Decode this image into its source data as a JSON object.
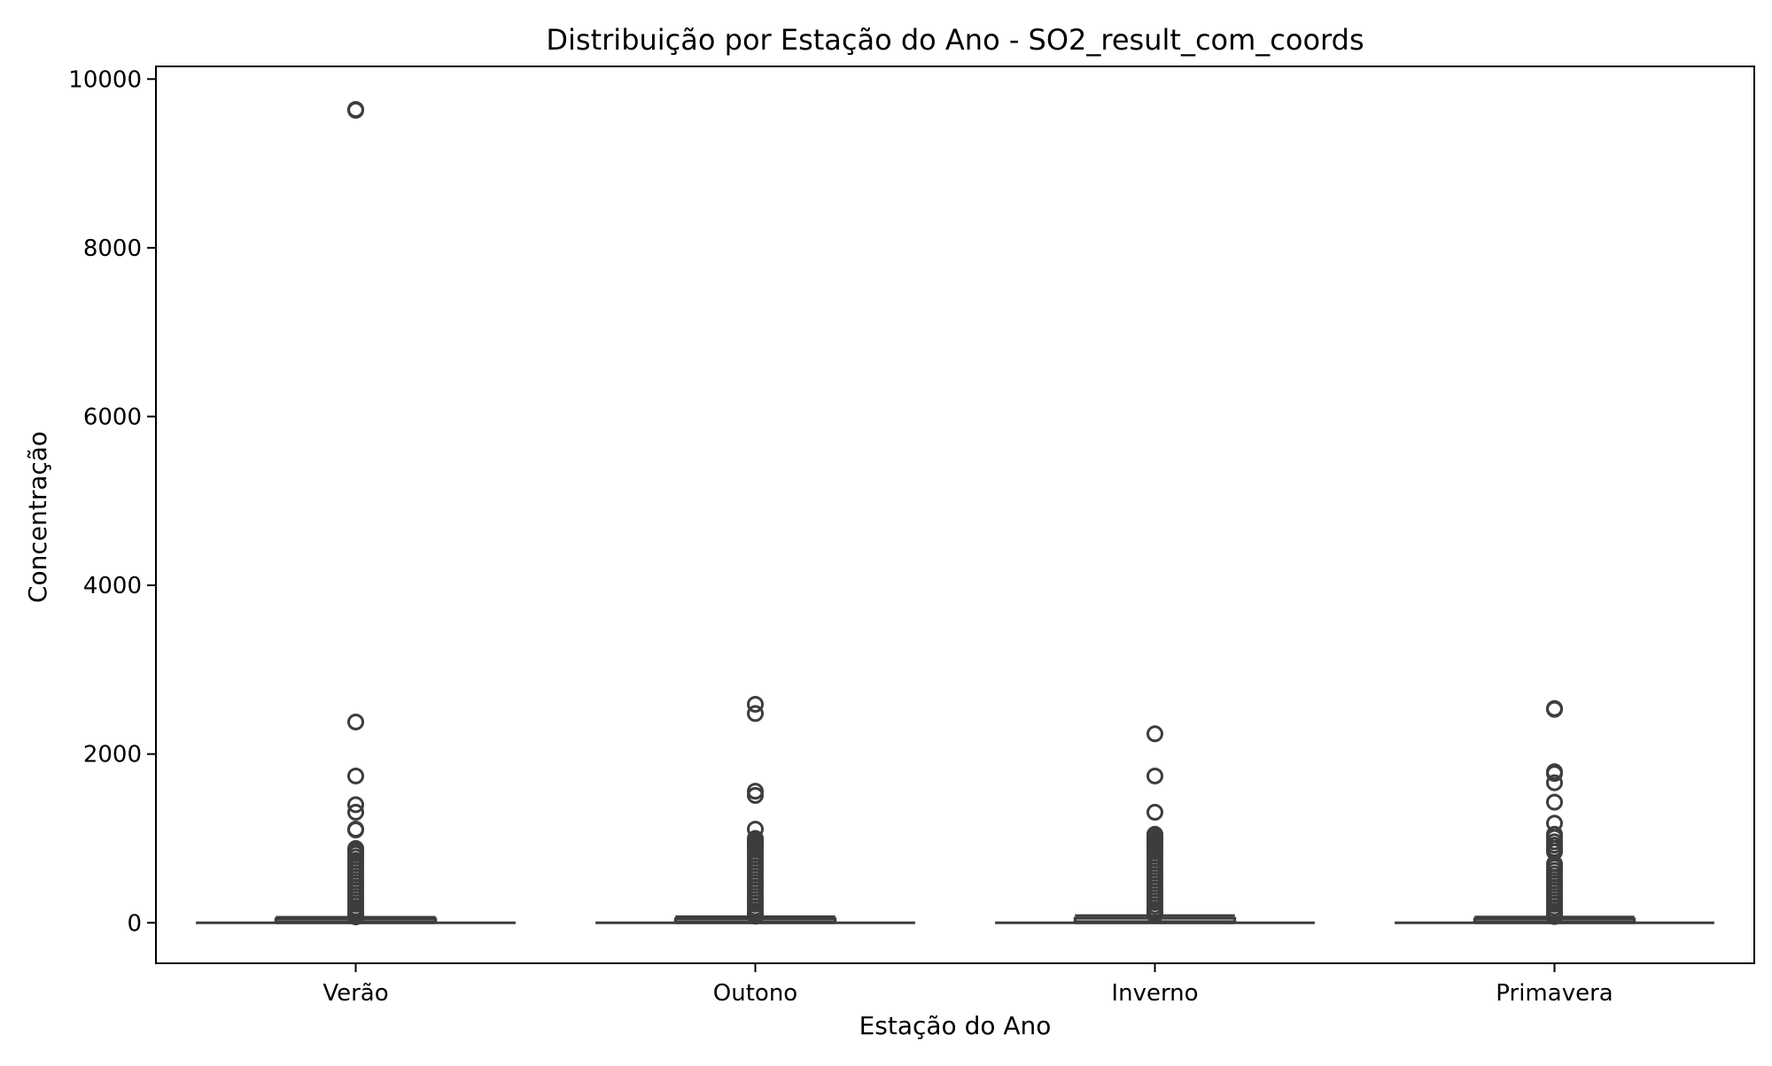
{
  "chart_data": {
    "type": "box",
    "title": "Distribuição por Estação do Ano - SO2_result_com_coords",
    "xlabel": "Estação do Ano",
    "ylabel": "Concentração",
    "categories": [
      "Verão",
      "Outono",
      "Inverno",
      "Primavera"
    ],
    "ylim": [
      -480,
      10150
    ],
    "yticks": [
      0,
      2000,
      4000,
      6000,
      8000,
      10000
    ],
    "grid": false,
    "legend": "none",
    "box_color": "#3d3d3d",
    "boxes": [
      {
        "category": "Verão",
        "whisker_low": 0,
        "q1": 5,
        "median": 12,
        "q3": 30,
        "whisker_high": 66,
        "outliers": [
          9640,
          9630,
          2380,
          1740,
          1400,
          1310,
          1110,
          1100,
          880,
          850,
          820,
          780,
          740,
          700,
          660,
          620,
          580,
          540,
          500,
          460,
          420,
          380,
          340,
          300,
          260,
          220,
          180,
          150,
          120,
          100,
          80,
          70
        ]
      },
      {
        "category": "Outono",
        "whisker_low": 0,
        "q1": 5,
        "median": 13,
        "q3": 32,
        "whisker_high": 72,
        "outliers": [
          2590,
          2480,
          1560,
          1510,
          1110,
          1000,
          980,
          960,
          940,
          920,
          900,
          880,
          860,
          820,
          780,
          740,
          700,
          660,
          620,
          580,
          540,
          500,
          460,
          420,
          380,
          340,
          300,
          260,
          220,
          180,
          140,
          110,
          90,
          78
        ]
      },
      {
        "category": "Inverno",
        "whisker_low": 0,
        "q1": 6,
        "median": 15,
        "q3": 38,
        "whisker_high": 85,
        "outliers": [
          2240,
          1740,
          1310,
          1050,
          1030,
          1010,
          990,
          970,
          950,
          930,
          900,
          870,
          840,
          800,
          760,
          720,
          680,
          640,
          600,
          560,
          520,
          480,
          440,
          400,
          360,
          320,
          280,
          240,
          200,
          160,
          130,
          110,
          95
        ]
      },
      {
        "category": "Primavera",
        "whisker_low": 0,
        "q1": 5,
        "median": 12,
        "q3": 30,
        "whisker_high": 68,
        "outliers": [
          2540,
          2530,
          1790,
          1770,
          1660,
          1430,
          1180,
          1050,
          1010,
          960,
          920,
          880,
          840,
          700,
          660,
          620,
          580,
          540,
          500,
          460,
          420,
          380,
          340,
          300,
          260,
          220,
          180,
          140,
          110,
          90,
          75
        ]
      }
    ]
  }
}
